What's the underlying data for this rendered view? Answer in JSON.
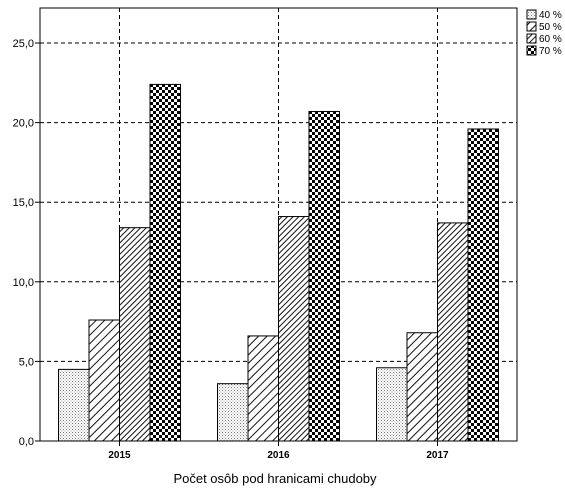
{
  "chart_data": {
    "type": "bar",
    "xlabel": "Počet osôb pod hranicami chudoby",
    "ylabel": "",
    "categories": [
      "2015",
      "2016",
      "2017"
    ],
    "ylim": [
      0,
      27.2
    ],
    "yticks": [
      "0,0",
      "5,0",
      "10,0",
      "15,0",
      "20,0",
      "25,0"
    ],
    "ytick_values": [
      0,
      5,
      10,
      15,
      20,
      25
    ],
    "grid": true,
    "legend_position": "top-right",
    "series": [
      {
        "name": "40 %",
        "values": [
          4.5,
          3.6,
          4.6
        ],
        "pattern": "dots"
      },
      {
        "name": "50 %",
        "values": [
          7.6,
          6.6,
          6.8
        ],
        "pattern": "diagonal-wide"
      },
      {
        "name": "60 %",
        "values": [
          13.4,
          14.1,
          13.7
        ],
        "pattern": "diagonal-dense"
      },
      {
        "name": "70 %",
        "values": [
          22.4,
          20.7,
          19.6
        ],
        "pattern": "checker"
      }
    ]
  }
}
